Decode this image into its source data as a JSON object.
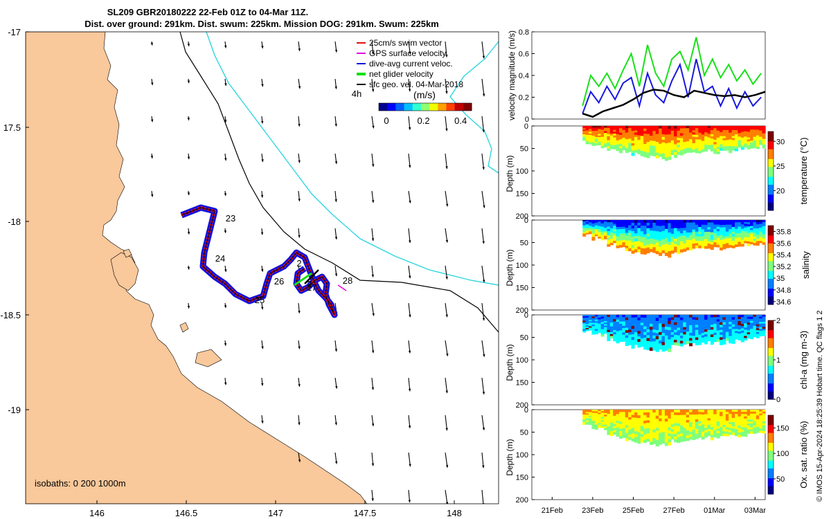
{
  "title": {
    "line1": "SL209 GBR20180222 22-Feb 01Z to 04-Mar 11Z.",
    "line2": "Dist. over ground: 291km. Dist. swum: 225km. Mission DOG: 291km. Swum: 225km"
  },
  "map": {
    "lon_ticks": [
      "146",
      "146.5",
      "147",
      "147.5",
      "148"
    ],
    "lat_ticks": [
      "-17",
      "17.5",
      "-18",
      "-18.5",
      "-19"
    ],
    "isobath_note": "isobaths: 0   200  1000m",
    "day_labels": [
      "23",
      "24",
      "25",
      "26",
      "27",
      "28",
      "2",
      "2",
      "4h"
    ],
    "legend": [
      {
        "label": "25cm/s swim vector",
        "color": "#e01010"
      },
      {
        "label": "GPS surface velocity",
        "color": "#e000e0"
      },
      {
        "label": "dive-avg current veloc.",
        "color": "#1010e0"
      },
      {
        "label": "net glider velocity",
        "color": "#10e010"
      },
      {
        "label": "sfc geo. vel. 04-Mar-2018",
        "color": "#000000"
      }
    ],
    "speed_bar": {
      "label": "(m/s)",
      "ticks": [
        "0",
        "0.2",
        "0.4"
      ],
      "range": [
        0,
        0.5
      ]
    },
    "colors": {
      "land": "#f9c89b",
      "sea": "#ffffff",
      "coast200": "#000000",
      "coast1000": "#2fd6e0",
      "track_blue": "#1010e0",
      "track_red": "#e01010"
    }
  },
  "chart_data": [
    {
      "type": "line",
      "title": "",
      "xlabel": "",
      "ylabel": "velocity magnitude (m/s)",
      "ylim": [
        0,
        0.8
      ],
      "yticks": [
        "0",
        "0.2",
        "0.4",
        "0.6",
        "0.8"
      ],
      "x_range_days": [
        0,
        11.5
      ],
      "series": [
        {
          "name": "net glider velocity",
          "color": "#18e018",
          "x": [
            2.5,
            2.9,
            3.3,
            3.7,
            4.1,
            4.5,
            4.9,
            5.3,
            5.7,
            6.1,
            6.5,
            6.9,
            7.3,
            7.7,
            8.1,
            8.5,
            8.9,
            9.3,
            9.7,
            10.1,
            10.5,
            10.9,
            11.3
          ],
          "values": [
            0.12,
            0.4,
            0.3,
            0.42,
            0.28,
            0.45,
            0.6,
            0.3,
            0.68,
            0.42,
            0.3,
            0.55,
            0.62,
            0.45,
            0.75,
            0.4,
            0.55,
            0.38,
            0.5,
            0.35,
            0.45,
            0.32,
            0.42
          ]
        },
        {
          "name": "dive-avg current veloc.",
          "color": "#1818e0",
          "x": [
            2.5,
            2.9,
            3.3,
            3.7,
            4.1,
            4.5,
            4.9,
            5.3,
            5.7,
            6.1,
            6.5,
            6.9,
            7.3,
            7.7,
            8.1,
            8.5,
            8.9,
            9.3,
            9.7,
            10.1,
            10.5,
            10.9,
            11.3
          ],
          "values": [
            0.05,
            0.25,
            0.15,
            0.3,
            0.18,
            0.33,
            0.38,
            0.12,
            0.42,
            0.22,
            0.15,
            0.35,
            0.5,
            0.2,
            0.55,
            0.25,
            0.3,
            0.12,
            0.28,
            0.1,
            0.25,
            0.12,
            0.2
          ]
        },
        {
          "name": "sfc geo. vel.",
          "color": "#000000",
          "x": [
            2.5,
            3.0,
            3.5,
            4.0,
            4.5,
            5.0,
            5.5,
            6.0,
            6.5,
            7.0,
            7.5,
            8.0,
            8.5,
            9.0,
            9.5,
            10.0,
            10.5,
            11.0,
            11.5
          ],
          "values": [
            0.05,
            0.02,
            0.07,
            0.1,
            0.13,
            0.18,
            0.24,
            0.27,
            0.26,
            0.22,
            0.2,
            0.26,
            0.24,
            0.22,
            0.21,
            0.22,
            0.2,
            0.22,
            0.25
          ]
        }
      ]
    },
    {
      "type": "heatmap",
      "ylabel": "Depth (m)",
      "colorbar_label": "temperature (°C)",
      "colorbar_ticks": [
        "20",
        "25",
        "30"
      ],
      "colorbar_range": [
        16,
        32
      ],
      "yticks": [
        "0",
        "50",
        "100",
        "150",
        "200"
      ],
      "ylim": [
        0,
        200
      ],
      "surface_value": 29.5,
      "deep_value": 24.0,
      "max_depth_profile_m": [
        35,
        40,
        45,
        50,
        55,
        58,
        62,
        65,
        68,
        70,
        72,
        66,
        60,
        62,
        58,
        56,
        60,
        58,
        55,
        52,
        50,
        48,
        45
      ]
    },
    {
      "type": "heatmap",
      "ylabel": "Depth (m)",
      "colorbar_label": "salinity",
      "colorbar_ticks": [
        "34.6",
        "34.8",
        "35",
        "35.2",
        "35.4",
        "35.6",
        "35.8"
      ],
      "colorbar_range": [
        34.55,
        35.9
      ],
      "yticks": [
        "0",
        "50",
        "100",
        "150",
        "200"
      ],
      "ylim": [
        0,
        200
      ],
      "surface_value": 34.75,
      "deep_value": 35.5,
      "max_depth_profile_m": [
        35,
        40,
        45,
        55,
        60,
        65,
        70,
        72,
        75,
        78,
        80,
        70,
        68,
        66,
        62,
        60,
        64,
        62,
        60,
        56,
        55,
        52,
        50
      ]
    },
    {
      "type": "heatmap",
      "ylabel": "Depth (m)",
      "colorbar_label": "chl-a (mg m-3)",
      "colorbar_ticks": [
        "0",
        "1",
        "2"
      ],
      "colorbar_range": [
        0,
        2
      ],
      "yticks": [
        "0",
        "50",
        "100",
        "150",
        "200"
      ],
      "ylim": [
        0,
        200
      ],
      "surface_value": 0.5,
      "deep_value": 0.8,
      "max_depth_profile_m": [
        35,
        40,
        45,
        55,
        60,
        65,
        70,
        72,
        75,
        78,
        80,
        70,
        68,
        66,
        62,
        60,
        64,
        62,
        60,
        56,
        55,
        52,
        50
      ]
    },
    {
      "type": "heatmap",
      "ylabel": "Depth (m)",
      "colorbar_label": "Ox. sat. ratio (%)",
      "colorbar_ticks": [
        "50",
        "100",
        "150"
      ],
      "colorbar_range": [
        20,
        175
      ],
      "yticks": [
        "0",
        "50",
        "100",
        "150",
        "200"
      ],
      "ylim": [
        0,
        200
      ],
      "surface_value": 125,
      "deep_value": 100,
      "max_depth_profile_m": [
        35,
        40,
        45,
        55,
        60,
        65,
        70,
        72,
        75,
        78,
        80,
        70,
        68,
        66,
        62,
        60,
        64,
        62,
        60,
        56,
        55,
        52,
        50
      ]
    }
  ],
  "time_axis": {
    "ticks": [
      "21Feb",
      "23Feb",
      "25Feb",
      "27Feb",
      "01Mar",
      "03Mar"
    ],
    "tick_days": [
      1,
      3,
      5,
      7,
      9,
      11
    ]
  },
  "side_note": "© IMOS 15-Apr-2024 18:25:39 Hobart time. QC flags 1  2"
}
